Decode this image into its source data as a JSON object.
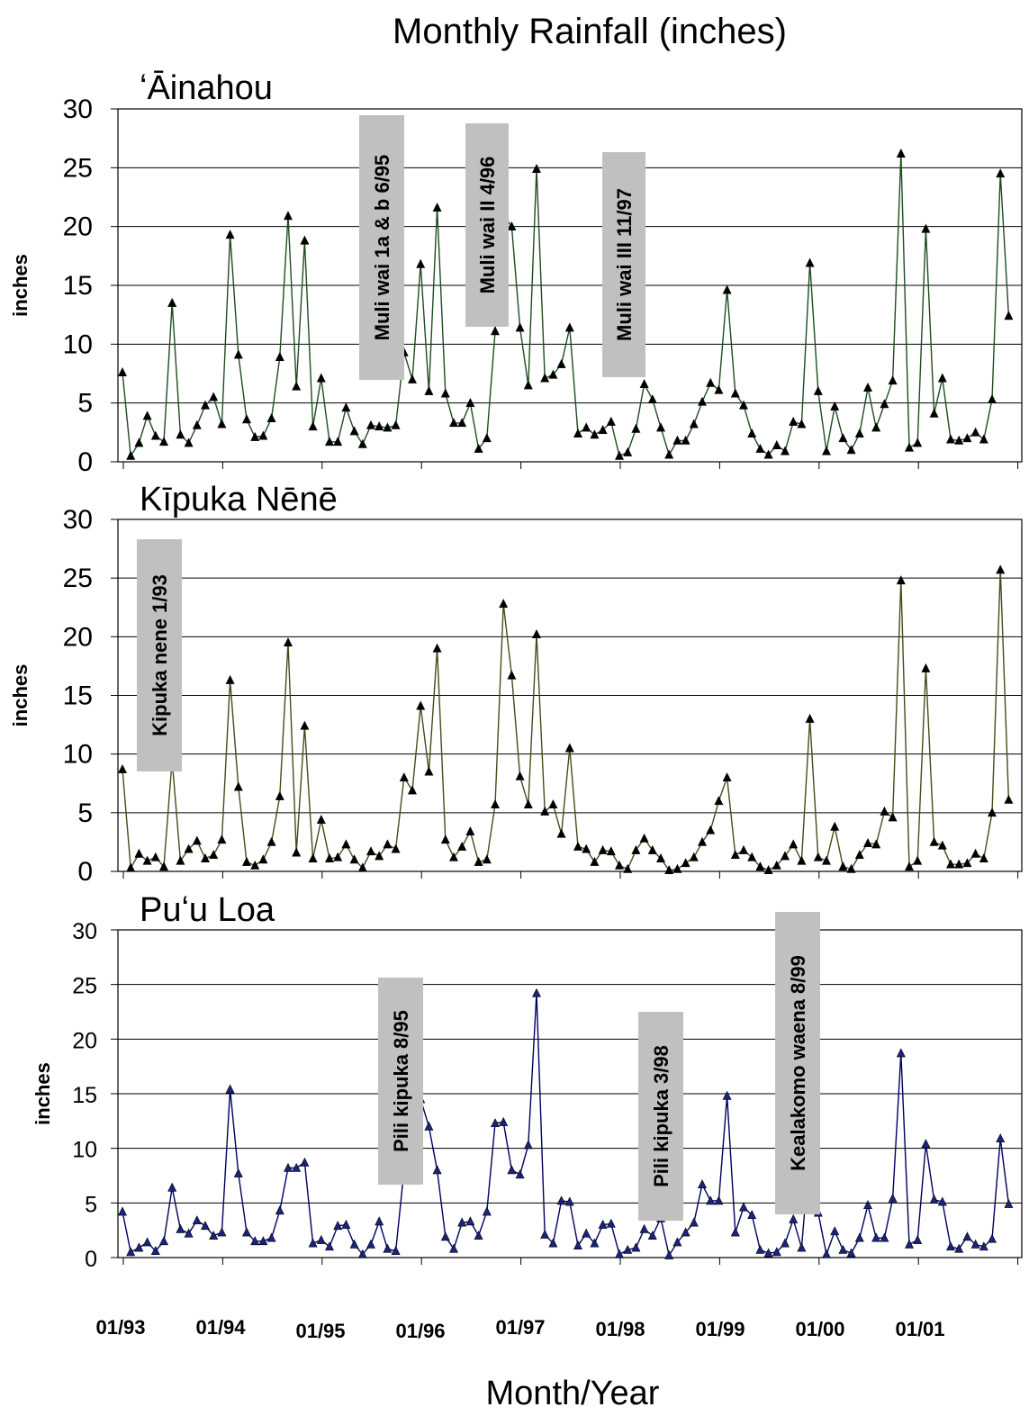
{
  "chart_data": {
    "title": "Monthly Rainfall (inches)",
    "xlabel": "Month/Year",
    "x_tick_labels": [
      "01/93",
      "01/94",
      "01/95",
      "01/96",
      "01/97",
      "01/98",
      "01/99",
      "01/00",
      "01/01"
    ],
    "colors": {
      "Ainahou": "#1f4d1f",
      "KipukaNene": "#4a4a1a",
      "PuuLoa": "#000060",
      "marker_fill_blue": "#1a237e",
      "annotation_box": "#c0c0c0"
    },
    "panels": [
      {
        "type": "line",
        "title": "ʻĀinahou",
        "ylabel": "inches",
        "ylim": [
          0,
          30
        ],
        "yticks": [
          "0",
          "5",
          "10",
          "15",
          "20",
          "25",
          "30"
        ],
        "x_start": "01/93",
        "values": [
          7.6,
          0.5,
          1.6,
          3.9,
          2.2,
          1.7,
          13.5,
          2.3,
          1.6,
          3.1,
          4.8,
          5.5,
          3.2,
          19.3,
          9.1,
          3.6,
          2.1,
          2.2,
          3.7,
          8.9,
          20.9,
          6.4,
          18.8,
          3.0,
          7.1,
          1.7,
          1.7,
          4.6,
          2.6,
          1.5,
          3.1,
          3.0,
          2.9,
          3.1,
          9.3,
          7.0,
          16.8,
          6.0,
          21.6,
          5.8,
          3.3,
          3.3,
          5.0,
          1.1,
          2.0,
          11.1,
          21.0,
          20.0,
          11.4,
          6.5,
          24.9,
          7.1,
          7.4,
          8.3,
          11.4,
          2.4,
          2.9,
          2.3,
          2.7,
          3.4,
          0.5,
          0.8,
          2.8,
          6.6,
          5.3,
          2.9,
          0.6,
          1.8,
          1.8,
          3.2,
          5.1,
          6.7,
          6.1,
          14.6,
          5.8,
          4.8,
          2.4,
          1.1,
          0.6,
          1.4,
          0.9,
          3.4,
          3.2,
          16.9,
          6.0,
          0.9,
          4.7,
          2.0,
          1.0,
          2.4,
          6.3,
          2.9,
          4.9,
          6.9,
          26.2,
          1.2,
          1.6,
          19.8,
          4.1,
          7.1,
          1.9,
          1.8,
          2.0,
          2.5,
          1.9,
          5.3,
          24.5,
          12.4
        ],
        "annotations": [
          {
            "text": "Muli wai 1a & b 6/95"
          },
          {
            "text": "Muli wai II 4/96"
          },
          {
            "text": "Muli wai III 11/97"
          }
        ]
      },
      {
        "type": "line",
        "title": "Kīpuka Nēnē",
        "ylabel": "inches",
        "ylim": [
          0,
          30
        ],
        "yticks": [
          "0",
          "5",
          "10",
          "15",
          "20",
          "25",
          "30"
        ],
        "x_start": "01/93",
        "values": [
          8.7,
          0.3,
          1.5,
          0.9,
          1.2,
          0.4,
          9.5,
          0.9,
          1.9,
          2.6,
          1.1,
          1.4,
          2.7,
          16.3,
          7.2,
          0.8,
          0.5,
          1.0,
          2.5,
          6.4,
          19.5,
          1.6,
          12.4,
          1.1,
          4.4,
          1.1,
          1.2,
          2.3,
          1.0,
          0.3,
          1.7,
          1.3,
          2.3,
          1.9,
          8.0,
          6.9,
          14.1,
          8.5,
          19.0,
          2.7,
          1.2,
          2.1,
          3.4,
          0.8,
          1.0,
          5.7,
          22.8,
          16.7,
          8.1,
          5.7,
          20.2,
          5.1,
          5.7,
          3.2,
          10.5,
          2.1,
          1.9,
          0.8,
          1.8,
          1.7,
          0.5,
          0.2,
          1.8,
          2.8,
          1.8,
          1.1,
          0.1,
          0.2,
          0.7,
          1.2,
          2.5,
          3.5,
          6.0,
          8.0,
          1.4,
          1.8,
          1.2,
          0.4,
          0.1,
          0.5,
          1.3,
          2.3,
          0.9,
          13.0,
          1.2,
          0.9,
          3.8,
          0.4,
          0.2,
          1.4,
          2.4,
          2.3,
          5.1,
          4.6,
          24.8,
          0.4,
          0.9,
          17.3,
          2.5,
          2.2,
          0.6,
          0.6,
          0.7,
          1.5,
          1.1,
          5.0,
          25.7,
          6.1
        ],
        "annotations": [
          {
            "text": "Kipuka nene 1/93"
          }
        ]
      },
      {
        "type": "line",
        "title": "Puʻu Loa",
        "ylabel": "inches",
        "ylim": [
          0,
          30
        ],
        "yticks": [
          "0",
          "5",
          "10",
          "15",
          "20",
          "25",
          "30"
        ],
        "x_start": "01/93",
        "values": [
          4.2,
          0.5,
          0.9,
          1.4,
          0.6,
          1.5,
          6.4,
          2.6,
          2.2,
          3.4,
          2.9,
          2.0,
          2.3,
          15.4,
          7.7,
          2.3,
          1.5,
          1.5,
          1.8,
          4.3,
          8.2,
          8.2,
          8.7,
          1.3,
          1.6,
          1.0,
          2.9,
          3.0,
          1.2,
          0.3,
          1.2,
          3.3,
          0.8,
          0.6,
          8.0,
          12.8,
          14.5,
          12.0,
          8.0,
          1.9,
          0.8,
          3.2,
          3.3,
          2.0,
          4.2,
          12.3,
          12.4,
          8.0,
          7.6,
          10.3,
          24.2,
          2.1,
          1.3,
          5.2,
          5.1,
          1.1,
          2.2,
          1.3,
          3.0,
          3.1,
          0.3,
          0.7,
          0.9,
          2.6,
          2.0,
          3.6,
          0.2,
          1.4,
          2.3,
          3.2,
          6.7,
          5.2,
          5.2,
          14.8,
          2.3,
          4.6,
          3.9,
          0.7,
          0.4,
          0.5,
          1.3,
          3.5,
          0.9,
          10.1,
          4.1,
          0.3,
          2.4,
          0.7,
          0.4,
          1.8,
          4.8,
          1.8,
          1.8,
          5.4,
          18.7,
          1.2,
          1.6,
          10.4,
          5.3,
          5.1,
          1.0,
          0.8,
          1.9,
          1.2,
          1.0,
          1.7,
          10.9,
          4.9
        ],
        "annotations": [
          {
            "text": "Pili kipuka 8/95"
          },
          {
            "text": "Pili kipuka 3/98"
          },
          {
            "text": "Kealakomo waena 8/99"
          }
        ]
      }
    ]
  }
}
